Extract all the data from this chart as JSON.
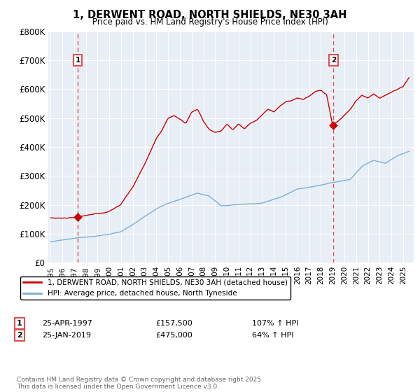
{
  "title_line1": "1, DERWENT ROAD, NORTH SHIELDS, NE30 3AH",
  "title_line2": "Price paid vs. HM Land Registry's House Price Index (HPI)",
  "ylim": [
    0,
    800000
  ],
  "yticks": [
    0,
    100000,
    200000,
    300000,
    400000,
    500000,
    600000,
    700000,
    800000
  ],
  "ytick_labels": [
    "£0",
    "£100K",
    "£200K",
    "£300K",
    "£400K",
    "£500K",
    "£600K",
    "£700K",
    "£800K"
  ],
  "sale1_date_num": 1997.3,
  "sale1_price": 157500,
  "sale1_label": "1",
  "sale1_date_str": "25-APR-1997",
  "sale1_price_str": "£157,500",
  "sale1_hpi_str": "107% ↑ HPI",
  "sale2_date_num": 2019.07,
  "sale2_price": 475000,
  "sale2_label": "2",
  "sale2_date_str": "25-JAN-2019",
  "sale2_price_str": "£475,000",
  "sale2_hpi_str": "64% ↑ HPI",
  "red_color": "#cc0000",
  "blue_color": "#7ab0d4",
  "dashed_red": "#e05050",
  "plot_bg": "#e8eef5",
  "legend1_label": "1, DERWENT ROAD, NORTH SHIELDS, NE30 3AH (detached house)",
  "legend2_label": "HPI: Average price, detached house, North Tyneside",
  "footer": "Contains HM Land Registry data © Crown copyright and database right 2025.\nThis data is licensed under the Open Government Licence v3.0.",
  "xlim_start": 1994.8,
  "xlim_end": 2025.9
}
